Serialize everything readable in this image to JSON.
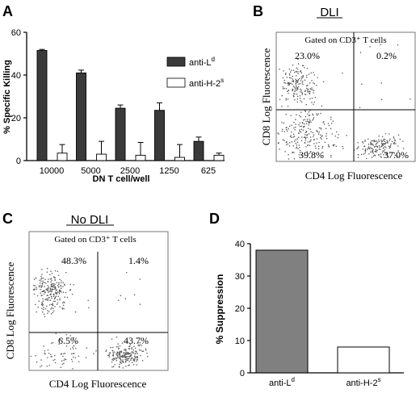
{
  "panels": {
    "a": {
      "letter": "A"
    },
    "b": {
      "letter": "B",
      "title": "DLI",
      "gate": "Gated on CD3⁺ T cells",
      "quadrants": [
        "23.0%",
        "0.2%",
        "39.8%",
        "37.0%"
      ],
      "xlabel": "CD4 Log Fluorescence",
      "ylabel": "CD8 Log Fluorescence"
    },
    "c": {
      "letter": "C",
      "title": "No DLI",
      "gate": "Gated on CD3⁺ T cells",
      "quadrants": [
        "48.3%",
        "1.4%",
        "6.5%",
        "43.7%"
      ],
      "xlabel": "CD4 Log Fluorescence",
      "ylabel": "CD8 Log Fluorescence"
    },
    "d": {
      "letter": "D"
    }
  },
  "colors": {
    "dark": "#3a3a3a",
    "gray": "#808080",
    "white": "#ffffff",
    "dot": "#555555"
  },
  "chart_data": [
    {
      "type": "bar",
      "panel": "A",
      "categories": [
        "10000",
        "5000",
        "2500",
        "1250",
        "625"
      ],
      "xlabel": "DN T cell/well",
      "ylabel": "% Specific Killing",
      "ylim": [
        0,
        60
      ],
      "yticks": [
        "0",
        "20",
        "40",
        "60"
      ],
      "legend_position": "right",
      "series": [
        {
          "name": "anti-L",
          "sup": "d",
          "color": "#3a3a3a",
          "values": [
            51.5,
            41,
            24.5,
            23.5,
            9
          ],
          "errors": [
            0.5,
            1.3,
            1.5,
            3.5,
            2
          ]
        },
        {
          "name": "anti-H-2",
          "sup": "s",
          "color": "#ffffff",
          "values": [
            3.5,
            3,
            2.5,
            1.5,
            2.5
          ],
          "errors": [
            4,
            6,
            6,
            6,
            1
          ]
        }
      ]
    },
    {
      "type": "bar",
      "panel": "D",
      "categories": [
        "anti-L",
        "anti-H-2"
      ],
      "category_sups": [
        "d",
        "s"
      ],
      "colors": [
        "#808080",
        "#ffffff"
      ],
      "values": [
        38,
        8
      ],
      "ylabel": "% Suppression",
      "ylim": [
        0,
        40
      ],
      "yticks": [
        "0",
        "10",
        "20",
        "30",
        "40"
      ]
    }
  ]
}
